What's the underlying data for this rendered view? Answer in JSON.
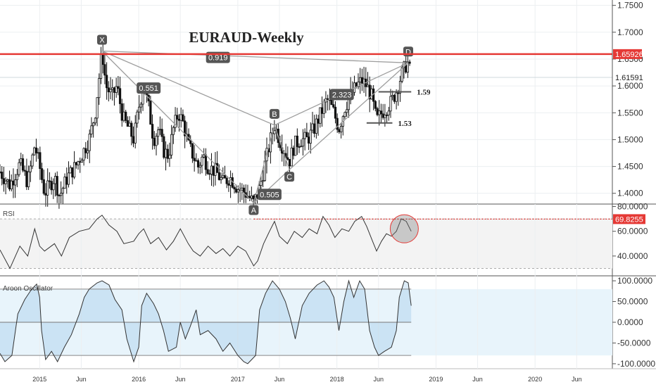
{
  "chart_data": [
    {
      "type": "candlestick",
      "title": "EURAUD-Weekly",
      "y_ticks": [
        "1.7500",
        "1.7000",
        "1.6500",
        "1.6000",
        "1.5500",
        "1.5000",
        "1.4500",
        "1.4000"
      ],
      "ylim": [
        1.38,
        1.76
      ],
      "x_ticks": [
        "2015",
        "Jun",
        "2016",
        "Jun",
        "2017",
        "Jun",
        "2018",
        "Jun",
        "2019",
        "Jun",
        "2020",
        "Jun"
      ],
      "x_tick_years": [
        2015.0,
        2015.42,
        2016.0,
        2016.42,
        2017.0,
        2017.42,
        2018.0,
        2018.42,
        2019.0,
        2019.42,
        2020.0,
        2020.42
      ],
      "xlim": [
        2014.6,
        2020.78
      ],
      "resistance": {
        "label": "1.65926",
        "value": 1.65926,
        "color": "#e53935"
      },
      "current_price": {
        "label": "1.61591",
        "value": 1.61591
      },
      "harmonic": {
        "points": [
          {
            "name": "X",
            "x": 2015.63,
            "y": 1.665
          },
          {
            "name": "A",
            "x": 2017.16,
            "y": 1.382
          },
          {
            "name": "B",
            "x": 2017.37,
            "y": 1.527
          },
          {
            "name": "C",
            "x": 2017.52,
            "y": 1.444
          },
          {
            "name": "D",
            "x": 2018.72,
            "y": 1.643
          }
        ],
        "ratios": [
          {
            "label": "0.919",
            "x": 2016.8,
            "y": 1.653
          },
          {
            "label": "0.551",
            "x": 2016.1,
            "y": 1.596
          },
          {
            "label": "2.323",
            "x": 2018.05,
            "y": 1.584
          },
          {
            "label": "0.505",
            "x": 2017.32,
            "y": 1.398
          }
        ]
      },
      "levels": [
        {
          "label": "1.59",
          "value": 1.589,
          "x_start": 2018.42,
          "x_end": 2018.75
        },
        {
          "label": "1.53",
          "value": 1.531,
          "x_start": 2018.3,
          "x_end": 2018.56
        }
      ],
      "price_path": [
        [
          2014.6,
          1.44
        ],
        [
          2014.7,
          1.415
        ],
        [
          2014.8,
          1.455
        ],
        [
          2014.88,
          1.42
        ],
        [
          2014.95,
          1.49
        ],
        [
          2015.0,
          1.45
        ],
        [
          2015.05,
          1.4
        ],
        [
          2015.15,
          1.43
        ],
        [
          2015.2,
          1.395
        ],
        [
          2015.28,
          1.43
        ],
        [
          2015.36,
          1.45
        ],
        [
          2015.42,
          1.47
        ],
        [
          2015.5,
          1.5
        ],
        [
          2015.56,
          1.55
        ],
        [
          2015.63,
          1.665
        ],
        [
          2015.67,
          1.6
        ],
        [
          2015.73,
          1.58
        ],
        [
          2015.78,
          1.6
        ],
        [
          2015.84,
          1.54
        ],
        [
          2015.9,
          1.52
        ],
        [
          2015.95,
          1.5
        ],
        [
          2016.0,
          1.56
        ],
        [
          2016.05,
          1.6
        ],
        [
          2016.1,
          1.56
        ],
        [
          2016.15,
          1.5
        ],
        [
          2016.2,
          1.52
        ],
        [
          2016.25,
          1.48
        ],
        [
          2016.3,
          1.47
        ],
        [
          2016.35,
          1.52
        ],
        [
          2016.4,
          1.55
        ],
        [
          2016.45,
          1.53
        ],
        [
          2016.5,
          1.49
        ],
        [
          2016.55,
          1.47
        ],
        [
          2016.6,
          1.45
        ],
        [
          2016.65,
          1.47
        ],
        [
          2016.7,
          1.45
        ],
        [
          2016.78,
          1.44
        ],
        [
          2016.85,
          1.42
        ],
        [
          2016.92,
          1.43
        ],
        [
          2017.0,
          1.41
        ],
        [
          2017.08,
          1.4
        ],
        [
          2017.16,
          1.382
        ],
        [
          2017.22,
          1.41
        ],
        [
          2017.28,
          1.46
        ],
        [
          2017.33,
          1.5
        ],
        [
          2017.37,
          1.527
        ],
        [
          2017.42,
          1.5
        ],
        [
          2017.47,
          1.48
        ],
        [
          2017.52,
          1.46
        ],
        [
          2017.57,
          1.49
        ],
        [
          2017.63,
          1.5
        ],
        [
          2017.7,
          1.5
        ],
        [
          2017.77,
          1.52
        ],
        [
          2017.84,
          1.55
        ],
        [
          2017.9,
          1.575
        ],
        [
          2017.96,
          1.555
        ],
        [
          2018.02,
          1.52
        ],
        [
          2018.08,
          1.56
        ],
        [
          2018.13,
          1.58
        ],
        [
          2018.2,
          1.6
        ],
        [
          2018.25,
          1.61
        ],
        [
          2018.3,
          1.6
        ],
        [
          2018.35,
          1.58
        ],
        [
          2018.4,
          1.535
        ],
        [
          2018.45,
          1.55
        ],
        [
          2018.5,
          1.56
        ],
        [
          2018.55,
          1.57
        ],
        [
          2018.6,
          1.59
        ],
        [
          2018.65,
          1.62
        ],
        [
          2018.7,
          1.64
        ],
        [
          2018.72,
          1.643
        ],
        [
          2018.75,
          1.615
        ]
      ]
    },
    {
      "type": "line",
      "name": "RSI",
      "value_label": "69.8255",
      "value": 69.8255,
      "ylim": [
        24,
        82
      ],
      "y_ticks": [
        "80.0000",
        "60.0000",
        "40.0000"
      ],
      "bands": [
        70,
        30
      ],
      "series_path": [
        [
          2014.6,
          45
        ],
        [
          2014.7,
          30
        ],
        [
          2014.8,
          48
        ],
        [
          2014.88,
          40
        ],
        [
          2014.95,
          62
        ],
        [
          2015.0,
          48
        ],
        [
          2015.05,
          44
        ],
        [
          2015.15,
          50
        ],
        [
          2015.22,
          40
        ],
        [
          2015.3,
          55
        ],
        [
          2015.4,
          60
        ],
        [
          2015.5,
          62
        ],
        [
          2015.58,
          70
        ],
        [
          2015.63,
          73
        ],
        [
          2015.7,
          65
        ],
        [
          2015.78,
          60
        ],
        [
          2015.85,
          50
        ],
        [
          2015.95,
          52
        ],
        [
          2016.0,
          58
        ],
        [
          2016.05,
          62
        ],
        [
          2016.12,
          50
        ],
        [
          2016.2,
          55
        ],
        [
          2016.28,
          45
        ],
        [
          2016.35,
          52
        ],
        [
          2016.42,
          62
        ],
        [
          2016.5,
          50
        ],
        [
          2016.55,
          44
        ],
        [
          2016.62,
          40
        ],
        [
          2016.7,
          48
        ],
        [
          2016.78,
          42
        ],
        [
          2016.85,
          46
        ],
        [
          2016.92,
          40
        ],
        [
          2017.0,
          48
        ],
        [
          2017.08,
          44
        ],
        [
          2017.16,
          32
        ],
        [
          2017.2,
          36
        ],
        [
          2017.26,
          50
        ],
        [
          2017.32,
          60
        ],
        [
          2017.37,
          68
        ],
        [
          2017.42,
          56
        ],
        [
          2017.5,
          50
        ],
        [
          2017.57,
          60
        ],
        [
          2017.65,
          55
        ],
        [
          2017.72,
          62
        ],
        [
          2017.8,
          58
        ],
        [
          2017.86,
          72
        ],
        [
          2017.92,
          65
        ],
        [
          2017.98,
          55
        ],
        [
          2018.05,
          62
        ],
        [
          2018.12,
          60
        ],
        [
          2018.18,
          68
        ],
        [
          2018.25,
          72
        ],
        [
          2018.3,
          64
        ],
        [
          2018.36,
          52
        ],
        [
          2018.4,
          44
        ],
        [
          2018.45,
          52
        ],
        [
          2018.5,
          58
        ],
        [
          2018.55,
          56
        ],
        [
          2018.6,
          60
        ],
        [
          2018.65,
          70
        ],
        [
          2018.7,
          68
        ],
        [
          2018.75,
          60
        ]
      ]
    },
    {
      "type": "line",
      "name": "Aroon Oscillator",
      "ylim": [
        -112,
        112
      ],
      "y_ticks": [
        "100.0000",
        "50.0000",
        "0.0000",
        "-50.0000",
        "-100.0000"
      ],
      "bands": [
        80,
        0,
        -80
      ],
      "series_path": [
        [
          2014.6,
          -75
        ],
        [
          2014.65,
          -95
        ],
        [
          2014.72,
          -80
        ],
        [
          2014.78,
          20
        ],
        [
          2014.85,
          55
        ],
        [
          2014.92,
          80
        ],
        [
          2014.97,
          92
        ],
        [
          2015.0,
          60
        ],
        [
          2015.02,
          -20
        ],
        [
          2015.06,
          -90
        ],
        [
          2015.12,
          -70
        ],
        [
          2015.18,
          -95
        ],
        [
          2015.25,
          -60
        ],
        [
          2015.32,
          -30
        ],
        [
          2015.4,
          20
        ],
        [
          2015.45,
          60
        ],
        [
          2015.5,
          80
        ],
        [
          2015.58,
          95
        ],
        [
          2015.63,
          100
        ],
        [
          2015.7,
          90
        ],
        [
          2015.76,
          55
        ],
        [
          2015.83,
          30
        ],
        [
          2015.88,
          -40
        ],
        [
          2015.95,
          -95
        ],
        [
          2016.0,
          -60
        ],
        [
          2016.03,
          40
        ],
        [
          2016.08,
          70
        ],
        [
          2016.15,
          45
        ],
        [
          2016.2,
          20
        ],
        [
          2016.25,
          -20
        ],
        [
          2016.3,
          -70
        ],
        [
          2016.38,
          -60
        ],
        [
          2016.42,
          0
        ],
        [
          2016.47,
          -40
        ],
        [
          2016.52,
          -10
        ],
        [
          2016.58,
          30
        ],
        [
          2016.62,
          -30
        ],
        [
          2016.7,
          -20
        ],
        [
          2016.78,
          -40
        ],
        [
          2016.85,
          -70
        ],
        [
          2016.92,
          -50
        ],
        [
          2017.0,
          -80
        ],
        [
          2017.06,
          -95
        ],
        [
          2017.1,
          -100
        ],
        [
          2017.14,
          -90
        ],
        [
          2017.18,
          -80
        ],
        [
          2017.22,
          30
        ],
        [
          2017.28,
          70
        ],
        [
          2017.35,
          100
        ],
        [
          2017.42,
          80
        ],
        [
          2017.48,
          50
        ],
        [
          2017.53,
          10
        ],
        [
          2017.58,
          -40
        ],
        [
          2017.65,
          40
        ],
        [
          2017.72,
          70
        ],
        [
          2017.8,
          90
        ],
        [
          2017.87,
          100
        ],
        [
          2017.92,
          85
        ],
        [
          2017.97,
          60
        ],
        [
          2018.02,
          -20
        ],
        [
          2018.07,
          50
        ],
        [
          2018.12,
          100
        ],
        [
          2018.17,
          60
        ],
        [
          2018.23,
          100
        ],
        [
          2018.28,
          80
        ],
        [
          2018.33,
          -20
        ],
        [
          2018.38,
          -60
        ],
        [
          2018.42,
          -80
        ],
        [
          2018.48,
          -70
        ],
        [
          2018.55,
          -60
        ],
        [
          2018.6,
          -20
        ],
        [
          2018.63,
          60
        ],
        [
          2018.68,
          100
        ],
        [
          2018.72,
          95
        ],
        [
          2018.75,
          40
        ]
      ]
    }
  ]
}
